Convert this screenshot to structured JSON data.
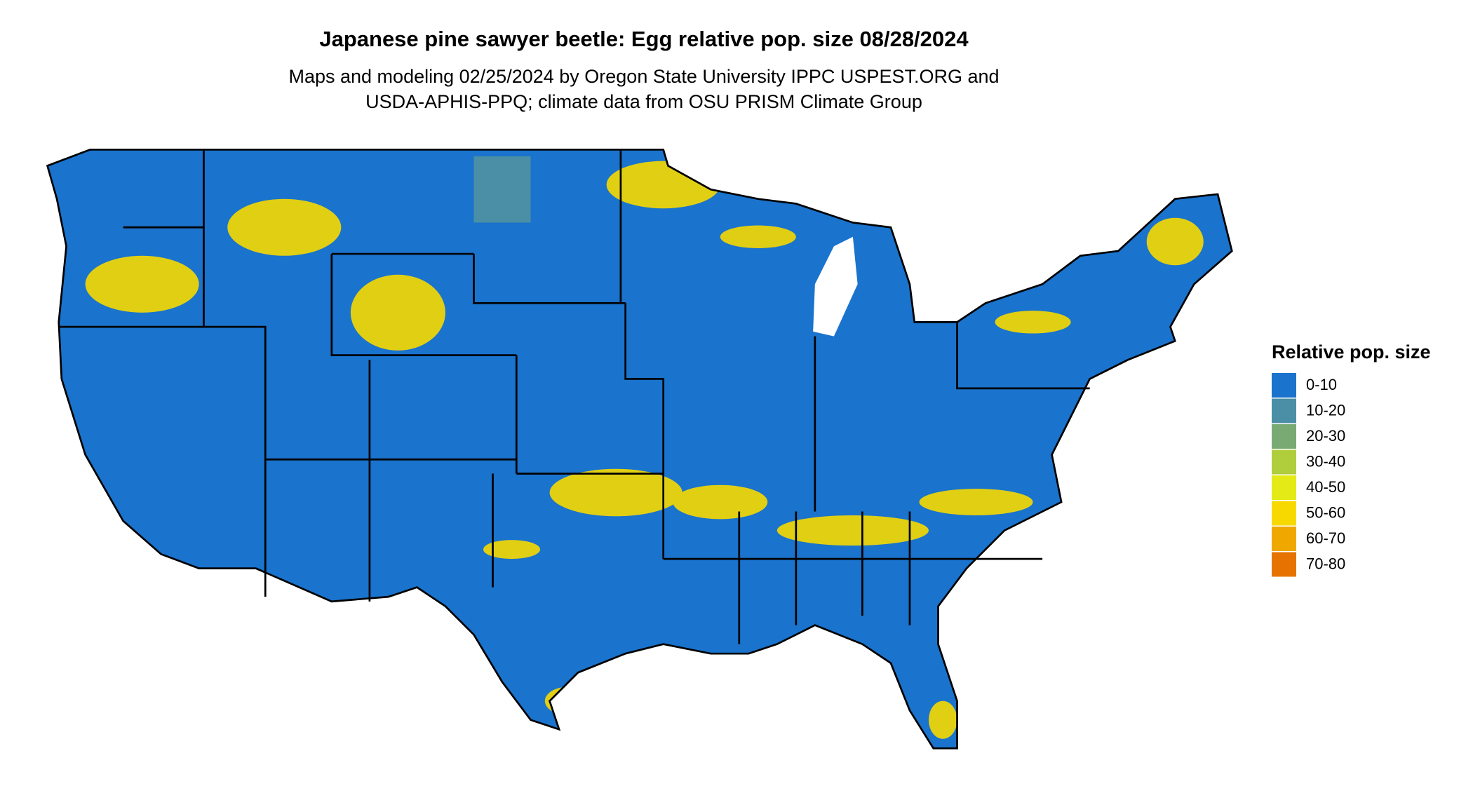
{
  "header": {
    "title": "Japanese pine sawyer beetle: Egg relative pop. size 08/28/2024",
    "subtitle": [
      "Maps and modeling 02/25/2024 by Oregon State University IPPC USPEST.ORG and",
      "USDA-APHIS-PPQ; climate data from OSU PRISM Climate Group"
    ]
  },
  "legend": {
    "title": "Relative pop. size",
    "items": [
      {
        "label": "0-10",
        "color": "#1a73cc"
      },
      {
        "label": "10-20",
        "color": "#4a8fa5"
      },
      {
        "label": "20-30",
        "color": "#7aaa73"
      },
      {
        "label": "30-40",
        "color": "#b0cd3c"
      },
      {
        "label": "40-50",
        "color": "#e3ea16"
      },
      {
        "label": "50-60",
        "color": "#f7d900"
      },
      {
        "label": "60-70",
        "color": "#eea800"
      },
      {
        "label": "70-80",
        "color": "#e67300"
      }
    ]
  }
}
